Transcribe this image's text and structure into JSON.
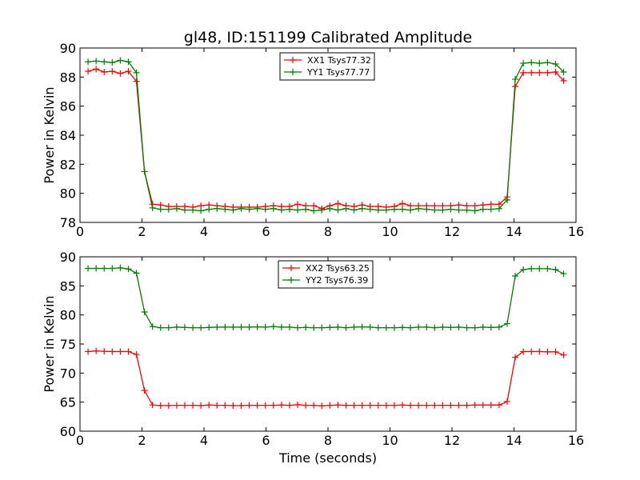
{
  "figure_title": "gl48, ID:151199 Calibrated Amplitude",
  "xlabel": "Time (seconds)",
  "chart_data": [
    {
      "type": "line",
      "title": "gl48, ID:151199 Calibrated Amplitude",
      "xlabel": "",
      "ylabel": "Power in Kelvin",
      "xlim": [
        0,
        16
      ],
      "ylim": [
        78,
        90
      ],
      "xticks": [
        0,
        2,
        4,
        6,
        8,
        10,
        12,
        14,
        16
      ],
      "yticks": [
        78,
        80,
        82,
        84,
        86,
        88,
        90
      ],
      "legend_position": "top-center",
      "x": [
        0.26,
        0.52,
        0.78,
        1.04,
        1.3,
        1.56,
        1.82,
        2.08,
        2.34,
        2.6,
        2.86,
        3.12,
        3.38,
        3.64,
        3.9,
        4.16,
        4.42,
        4.68,
        4.94,
        5.2,
        5.46,
        5.72,
        5.98,
        6.24,
        6.5,
        6.76,
        7.02,
        7.28,
        7.54,
        7.8,
        8.06,
        8.32,
        8.58,
        8.84,
        9.1,
        9.36,
        9.62,
        9.88,
        10.14,
        10.4,
        10.66,
        10.92,
        11.18,
        11.44,
        11.7,
        11.96,
        12.22,
        12.48,
        12.74,
        13.0,
        13.26,
        13.52,
        13.78,
        14.04,
        14.3,
        14.56,
        14.82,
        15.08,
        15.34,
        15.6
      ],
      "series": [
        {
          "name": "XX1 Tsys77.32",
          "color": "#ff0000",
          "values": [
            88.4,
            88.55,
            88.35,
            88.4,
            88.25,
            88.4,
            87.7,
            81.5,
            79.25,
            79.2,
            79.1,
            79.1,
            79.1,
            79.05,
            79.15,
            79.2,
            79.15,
            79.1,
            79.05,
            79.05,
            79.05,
            79.05,
            79.1,
            79.15,
            79.1,
            79.1,
            79.25,
            79.15,
            79.15,
            78.95,
            79.15,
            79.3,
            79.15,
            79.1,
            79.2,
            79.1,
            79.1,
            79.05,
            79.1,
            79.3,
            79.15,
            79.15,
            79.15,
            79.15,
            79.15,
            79.15,
            79.2,
            79.15,
            79.15,
            79.2,
            79.25,
            79.25,
            79.75,
            87.35,
            88.3,
            88.3,
            88.3,
            88.3,
            88.35,
            87.75
          ]
        },
        {
          "name": "YY1 Tsys77.77",
          "color": "#008000",
          "values": [
            89.05,
            89.1,
            89.05,
            89.0,
            89.15,
            89.05,
            88.3,
            81.5,
            79.0,
            78.9,
            78.9,
            78.95,
            78.85,
            78.85,
            78.8,
            78.9,
            78.95,
            78.9,
            78.85,
            78.95,
            78.9,
            78.95,
            78.9,
            78.95,
            78.85,
            78.9,
            78.85,
            78.9,
            78.8,
            78.85,
            78.95,
            78.85,
            78.95,
            78.85,
            78.95,
            78.9,
            78.85,
            78.85,
            78.9,
            78.9,
            78.85,
            78.95,
            78.9,
            78.85,
            78.85,
            78.9,
            78.85,
            78.85,
            78.8,
            78.9,
            78.9,
            78.95,
            79.55,
            87.85,
            88.95,
            89.0,
            88.95,
            89.0,
            88.9,
            88.35
          ]
        }
      ]
    },
    {
      "type": "line",
      "title": "",
      "xlabel": "Time (seconds)",
      "ylabel": "Power in Kelvin",
      "xlim": [
        0,
        16
      ],
      "ylim": [
        60,
        90
      ],
      "xticks": [
        0,
        2,
        4,
        6,
        8,
        10,
        12,
        14,
        16
      ],
      "yticks": [
        60,
        65,
        70,
        75,
        80,
        85,
        90
      ],
      "legend_position": "top-center",
      "x": [
        0.26,
        0.52,
        0.78,
        1.04,
        1.3,
        1.56,
        1.82,
        2.08,
        2.34,
        2.6,
        2.86,
        3.12,
        3.38,
        3.64,
        3.9,
        4.16,
        4.42,
        4.68,
        4.94,
        5.2,
        5.46,
        5.72,
        5.98,
        6.24,
        6.5,
        6.76,
        7.02,
        7.28,
        7.54,
        7.8,
        8.06,
        8.32,
        8.58,
        8.84,
        9.1,
        9.36,
        9.62,
        9.88,
        10.14,
        10.4,
        10.66,
        10.92,
        11.18,
        11.44,
        11.7,
        11.96,
        12.22,
        12.48,
        12.74,
        13.0,
        13.26,
        13.52,
        13.78,
        14.04,
        14.3,
        14.56,
        14.82,
        15.08,
        15.34,
        15.6
      ],
      "series": [
        {
          "name": "XX2 Tsys63.25",
          "color": "#ff0000",
          "values": [
            73.7,
            73.8,
            73.75,
            73.7,
            73.7,
            73.7,
            73.2,
            67.0,
            64.5,
            64.4,
            64.4,
            64.45,
            64.45,
            64.45,
            64.4,
            64.5,
            64.45,
            64.45,
            64.4,
            64.4,
            64.45,
            64.45,
            64.45,
            64.45,
            64.5,
            64.45,
            64.55,
            64.45,
            64.45,
            64.35,
            64.45,
            64.5,
            64.45,
            64.45,
            64.45,
            64.45,
            64.45,
            64.45,
            64.45,
            64.5,
            64.45,
            64.45,
            64.45,
            64.45,
            64.45,
            64.45,
            64.45,
            64.45,
            64.5,
            64.5,
            64.5,
            64.5,
            65.1,
            72.7,
            73.7,
            73.7,
            73.7,
            73.65,
            73.65,
            73.1
          ]
        },
        {
          "name": "YY2 Tsys76.39",
          "color": "#008000",
          "values": [
            88.0,
            88.0,
            88.0,
            88.0,
            88.1,
            87.9,
            87.2,
            80.5,
            78.0,
            77.8,
            77.8,
            77.9,
            77.85,
            77.8,
            77.8,
            77.85,
            77.9,
            77.9,
            77.9,
            77.9,
            77.9,
            77.95,
            77.9,
            78.0,
            77.9,
            77.9,
            77.8,
            77.85,
            77.8,
            77.8,
            77.85,
            77.9,
            77.8,
            77.9,
            77.95,
            77.9,
            77.8,
            77.8,
            77.8,
            77.85,
            77.8,
            77.9,
            77.9,
            77.8,
            77.9,
            77.85,
            77.9,
            77.8,
            77.8,
            77.9,
            77.85,
            77.9,
            78.5,
            86.7,
            87.8,
            87.95,
            87.95,
            87.95,
            87.8,
            87.1
          ]
        }
      ]
    }
  ]
}
